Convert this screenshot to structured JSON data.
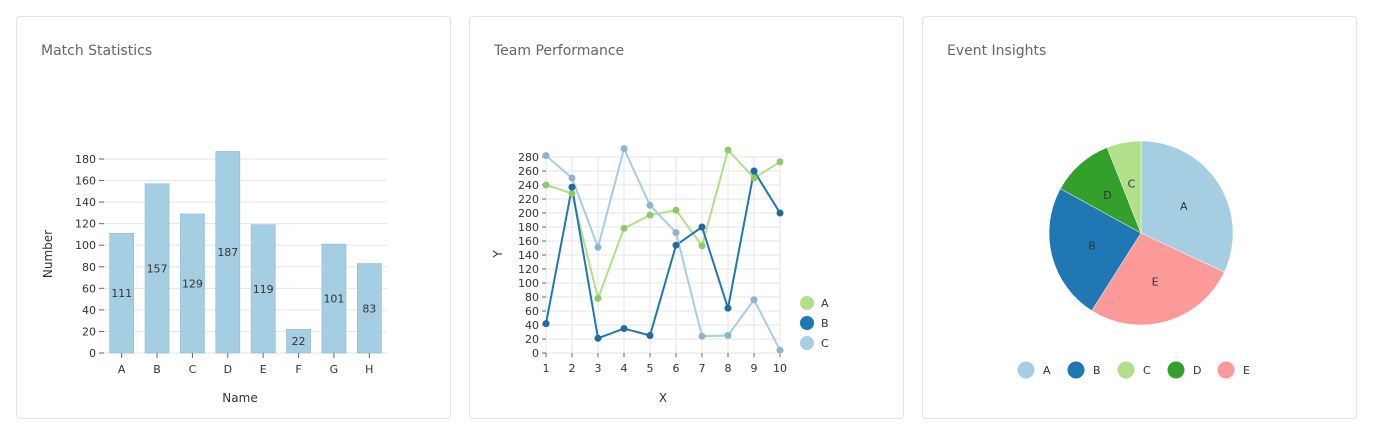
{
  "cards": [
    {
      "title": "Match Statistics"
    },
    {
      "title": "Team Performance"
    },
    {
      "title": "Event Insights"
    }
  ],
  "chart_data": [
    {
      "type": "bar",
      "title": "Match Statistics",
      "xlabel": "Name",
      "ylabel": "Number",
      "categories": [
        "A",
        "B",
        "C",
        "D",
        "E",
        "F",
        "G",
        "H"
      ],
      "values": [
        111,
        157,
        129,
        187,
        119,
        22,
        101,
        83
      ],
      "ylim": [
        0,
        180
      ],
      "yticks": [
        0,
        20,
        40,
        60,
        80,
        100,
        120,
        140,
        160,
        180
      ],
      "grid": true,
      "color": "#a6cee3"
    },
    {
      "type": "line",
      "title": "Team Performance",
      "xlabel": "X",
      "ylabel": "Y",
      "x": [
        1,
        2,
        3,
        4,
        5,
        6,
        7,
        8,
        9,
        10
      ],
      "xlim": [
        1,
        10
      ],
      "ylim": [
        0,
        280
      ],
      "yticks": [
        0,
        20,
        40,
        60,
        80,
        100,
        120,
        140,
        160,
        180,
        200,
        220,
        240,
        260,
        280
      ],
      "grid": true,
      "legend": "right",
      "series": [
        {
          "name": "A",
          "color": "#b2df8a",
          "values": [
            240,
            228,
            78,
            178,
            197,
            204,
            153,
            290,
            250,
            273
          ]
        },
        {
          "name": "B",
          "color": "#1f78b4",
          "values": [
            42,
            237,
            21,
            35,
            25,
            154,
            180,
            64,
            260,
            200
          ]
        },
        {
          "name": "C",
          "color": "#a6cee3",
          "values": [
            282,
            250,
            151,
            292,
            211,
            172,
            24,
            25,
            76,
            4
          ]
        }
      ]
    },
    {
      "type": "pie",
      "title": "Event Insights",
      "legend": "bottom",
      "slices": [
        {
          "label": "A",
          "value": 32,
          "color": "#a6cee3"
        },
        {
          "label": "E",
          "value": 27,
          "color": "#fb9a99"
        },
        {
          "label": "B",
          "value": 24,
          "color": "#1f78b4"
        },
        {
          "label": "D",
          "value": 11,
          "color": "#33a02c"
        },
        {
          "label": "C",
          "value": 6,
          "color": "#b2df8a"
        }
      ],
      "legend_order": [
        "A",
        "B",
        "C",
        "D",
        "E"
      ]
    }
  ]
}
